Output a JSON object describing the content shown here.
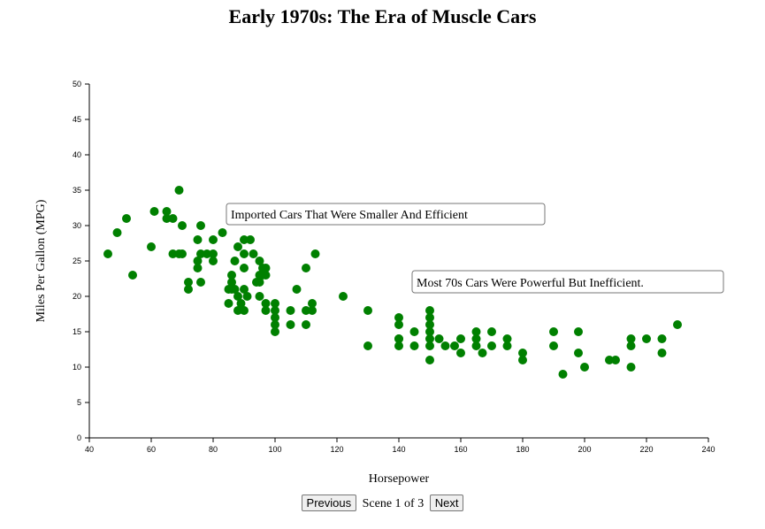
{
  "title": "Early 1970s: The Era of Muscle Cars",
  "controls": {
    "previous_label": "Previous",
    "scene_label": "Scene 1 of 3",
    "next_label": "Next"
  },
  "chart_data": {
    "type": "scatter",
    "title": "Early 1970s: The Era of Muscle Cars",
    "xlabel": "Horsepower",
    "ylabel": "Miles Per Gallon (MPG)",
    "xlim": [
      40,
      240
    ],
    "ylim": [
      0,
      50
    ],
    "xticks": [
      40,
      60,
      80,
      100,
      120,
      140,
      160,
      180,
      200,
      220,
      240
    ],
    "yticks": [
      0,
      5,
      10,
      15,
      20,
      25,
      30,
      35,
      40,
      45,
      50
    ],
    "grid": false,
    "point_color": "#008000",
    "points": [
      [
        46,
        26
      ],
      [
        49,
        29
      ],
      [
        52,
        31
      ],
      [
        54,
        23
      ],
      [
        60,
        27
      ],
      [
        61,
        32
      ],
      [
        65,
        32
      ],
      [
        65,
        31
      ],
      [
        67,
        31
      ],
      [
        67,
        26
      ],
      [
        69,
        35
      ],
      [
        69,
        26
      ],
      [
        70,
        30
      ],
      [
        70,
        26
      ],
      [
        72,
        22
      ],
      [
        72,
        21
      ],
      [
        75,
        28
      ],
      [
        75,
        25
      ],
      [
        75,
        24
      ],
      [
        76,
        30
      ],
      [
        76,
        26
      ],
      [
        76,
        22
      ],
      [
        78,
        26
      ],
      [
        80,
        28
      ],
      [
        80,
        26
      ],
      [
        80,
        25
      ],
      [
        83,
        29
      ],
      [
        85,
        21
      ],
      [
        85,
        19
      ],
      [
        86,
        23
      ],
      [
        86,
        22
      ],
      [
        86,
        21
      ],
      [
        87,
        25
      ],
      [
        87,
        21
      ],
      [
        88,
        27
      ],
      [
        88,
        20
      ],
      [
        88,
        18
      ],
      [
        89,
        19
      ],
      [
        90,
        28
      ],
      [
        90,
        26
      ],
      [
        90,
        24
      ],
      [
        90,
        21
      ],
      [
        90,
        18
      ],
      [
        91,
        20
      ],
      [
        92,
        28
      ],
      [
        93,
        26
      ],
      [
        94,
        22
      ],
      [
        95,
        25
      ],
      [
        95,
        23
      ],
      [
        95,
        22
      ],
      [
        95,
        20
      ],
      [
        96,
        24
      ],
      [
        96,
        23
      ],
      [
        97,
        24
      ],
      [
        97,
        23
      ],
      [
        97,
        19
      ],
      [
        97,
        18
      ],
      [
        100,
        19
      ],
      [
        100,
        18
      ],
      [
        100,
        17
      ],
      [
        100,
        16
      ],
      [
        100,
        15
      ],
      [
        105,
        18
      ],
      [
        105,
        16
      ],
      [
        107,
        21
      ],
      [
        110,
        24
      ],
      [
        110,
        18
      ],
      [
        110,
        16
      ],
      [
        112,
        19
      ],
      [
        112,
        18
      ],
      [
        113,
        26
      ],
      [
        122,
        20
      ],
      [
        130,
        18
      ],
      [
        130,
        13
      ],
      [
        140,
        14
      ],
      [
        140,
        17
      ],
      [
        140,
        16
      ],
      [
        140,
        14
      ],
      [
        140,
        13
      ],
      [
        145,
        15
      ],
      [
        145,
        13
      ],
      [
        150,
        18
      ],
      [
        150,
        17
      ],
      [
        150,
        16
      ],
      [
        150,
        15
      ],
      [
        150,
        14
      ],
      [
        150,
        13
      ],
      [
        150,
        11
      ],
      [
        153,
        14
      ],
      [
        155,
        13
      ],
      [
        158,
        13
      ],
      [
        160,
        14
      ],
      [
        160,
        12
      ],
      [
        165,
        15
      ],
      [
        165,
        14
      ],
      [
        165,
        13
      ],
      [
        167,
        12
      ],
      [
        170,
        15
      ],
      [
        170,
        13
      ],
      [
        175,
        14
      ],
      [
        175,
        13
      ],
      [
        180,
        12
      ],
      [
        180,
        11
      ],
      [
        190,
        15
      ],
      [
        190,
        13
      ],
      [
        193,
        9
      ],
      [
        198,
        15
      ],
      [
        198,
        12
      ],
      [
        200,
        10
      ],
      [
        208,
        11
      ],
      [
        210,
        11
      ],
      [
        215,
        14
      ],
      [
        215,
        13
      ],
      [
        215,
        10
      ],
      [
        220,
        14
      ],
      [
        225,
        14
      ],
      [
        225,
        12
      ],
      [
        230,
        16
      ]
    ],
    "annotations": [
      {
        "text": "Imported Cars That Were Smaller And Efficient"
      },
      {
        "text": "Most 70s Cars Were Powerful But Inefficient."
      }
    ]
  }
}
